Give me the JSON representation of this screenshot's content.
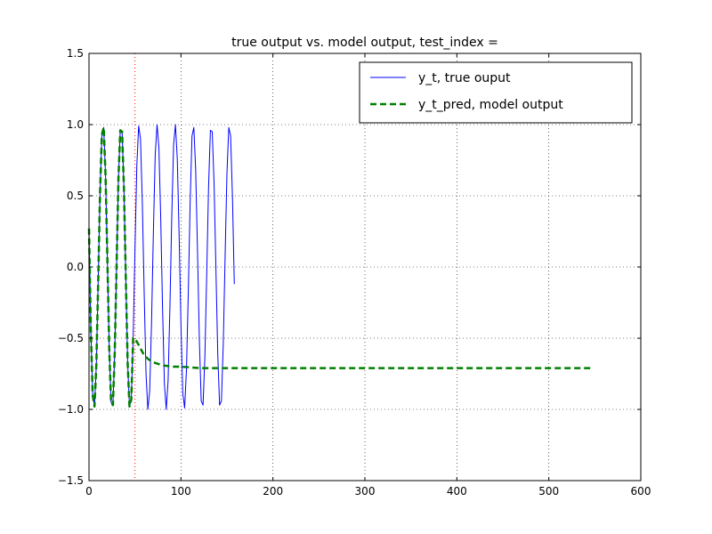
{
  "chart_data": {
    "type": "line",
    "title": "true output vs. model output, test_index =",
    "xlabel": "",
    "ylabel": "",
    "xlim": [
      0,
      600
    ],
    "ylim": [
      -1.5,
      1.5
    ],
    "xticks": [
      0,
      100,
      200,
      300,
      400,
      500,
      600
    ],
    "yticks": [
      -1.5,
      -1.0,
      -0.5,
      0.0,
      0.5,
      1.0,
      1.5
    ],
    "grid": true,
    "legend_position": "top-right",
    "vertical_marker": {
      "x": 50,
      "color": "#ff0000",
      "style": "dotted"
    },
    "series": [
      {
        "name": "y_t, true ouput",
        "color": "#0000ff",
        "style": "solid",
        "x": [
          0,
          2,
          4,
          6,
          8,
          10,
          12,
          14,
          16,
          18,
          20,
          22,
          24,
          26,
          28,
          30,
          32,
          34,
          36,
          38,
          40,
          42,
          44,
          46,
          48,
          50,
          52,
          54,
          56,
          58,
          60,
          62,
          64,
          66,
          68,
          70,
          72,
          74,
          76,
          78,
          80,
          82,
          84,
          86,
          88,
          90,
          92,
          94,
          96,
          98,
          100,
          102,
          104,
          106,
          108,
          110,
          112,
          114,
          116,
          118,
          120,
          122,
          124,
          126,
          128,
          130,
          132,
          134,
          136,
          138,
          140,
          142,
          144,
          146,
          148,
          150,
          152,
          154,
          156,
          158
        ],
        "y": [
          0.27,
          -0.44,
          -0.9,
          -0.98,
          -0.68,
          -0.1,
          0.52,
          0.93,
          0.98,
          0.64,
          0.05,
          -0.57,
          -0.95,
          -0.97,
          -0.6,
          0.01,
          0.62,
          0.96,
          0.95,
          0.55,
          -0.07,
          -0.67,
          -0.98,
          -0.93,
          -0.5,
          0.13,
          0.71,
          0.99,
          0.9,
          0.45,
          -0.18,
          -0.75,
          -1.0,
          -0.87,
          -0.39,
          0.24,
          0.79,
          1.0,
          0.84,
          0.34,
          -0.3,
          -0.82,
          -1.0,
          -0.8,
          -0.28,
          0.36,
          0.86,
          1.0,
          0.76,
          0.22,
          -0.41,
          -0.89,
          -0.99,
          -0.72,
          -0.17,
          0.46,
          0.92,
          0.98,
          0.68,
          0.11,
          -0.51,
          -0.94,
          -0.97,
          -0.63,
          -0.05,
          0.56,
          0.96,
          0.95,
          0.59,
          -0.01,
          -0.61,
          -0.97,
          -0.94,
          -0.54,
          0.07,
          0.66,
          0.98,
          0.92,
          0.49,
          -0.12
        ]
      },
      {
        "name": "y_t_pred, model output",
        "color": "#008000",
        "style": "dashed",
        "x": [
          0,
          2,
          4,
          6,
          8,
          10,
          12,
          14,
          16,
          18,
          20,
          22,
          24,
          26,
          28,
          30,
          32,
          34,
          36,
          38,
          40,
          42,
          44,
          46,
          48,
          50,
          55,
          60,
          65,
          70,
          75,
          80,
          85,
          90,
          100,
          110,
          120,
          140,
          170,
          200,
          300,
          400,
          500,
          545
        ],
        "y": [
          0.27,
          -0.44,
          -0.9,
          -0.98,
          -0.68,
          -0.1,
          0.52,
          0.93,
          0.98,
          0.64,
          0.05,
          -0.57,
          -0.95,
          -0.97,
          -0.6,
          0.01,
          0.62,
          0.96,
          0.95,
          0.55,
          -0.07,
          -0.67,
          -0.98,
          -0.93,
          -0.5,
          -0.5,
          -0.56,
          -0.62,
          -0.65,
          -0.67,
          -0.68,
          -0.69,
          -0.695,
          -0.7,
          -0.7,
          -0.705,
          -0.71,
          -0.71,
          -0.71,
          -0.71,
          -0.71,
          -0.71,
          -0.71,
          -0.71
        ]
      }
    ]
  }
}
